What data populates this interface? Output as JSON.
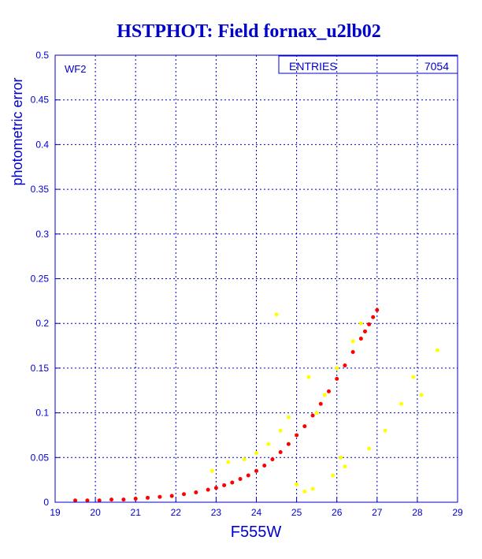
{
  "chart_data": {
    "type": "scatter",
    "title": "HSTPHOT: Field fornax_u2lb02",
    "xlabel": "F555W",
    "ylabel": "photometric error",
    "xlim": [
      19,
      29
    ],
    "ylim": [
      0,
      0.5
    ],
    "x_ticks": [
      "19",
      "20",
      "21",
      "22",
      "23",
      "24",
      "25",
      "26",
      "27",
      "28",
      "29"
    ],
    "y_ticks": [
      "0",
      "0.05",
      "0.1",
      "0.15",
      "0.2",
      "0.25",
      "0.3",
      "0.35",
      "0.4",
      "0.45",
      "0.5"
    ],
    "grid": true,
    "panel_label": "WF2",
    "stats": {
      "label": "ENTRIES",
      "value": "7054"
    },
    "series": [
      {
        "color": "#ff0000",
        "x": [
          19.5,
          19.8,
          20.1,
          20.4,
          20.7,
          21.0,
          21.3,
          21.6,
          21.9,
          22.2,
          22.5,
          22.8,
          23.0,
          23.2,
          23.4,
          23.6,
          23.8,
          24.0,
          24.2,
          24.4,
          24.6,
          24.8,
          25.0,
          25.2,
          25.4,
          25.6,
          25.8,
          26.0,
          26.2,
          26.4,
          26.6,
          26.7,
          26.8,
          26.9,
          27.0
        ],
        "y": [
          0.002,
          0.002,
          0.002,
          0.003,
          0.003,
          0.004,
          0.005,
          0.006,
          0.007,
          0.009,
          0.011,
          0.014,
          0.016,
          0.019,
          0.022,
          0.026,
          0.03,
          0.035,
          0.041,
          0.048,
          0.056,
          0.065,
          0.075,
          0.085,
          0.097,
          0.11,
          0.124,
          0.138,
          0.153,
          0.168,
          0.183,
          0.191,
          0.199,
          0.207,
          0.215
        ]
      },
      {
        "color": "#ffff00",
        "x": [
          22.9,
          23.3,
          23.7,
          24.0,
          24.3,
          24.6,
          24.8,
          25.0,
          25.2,
          25.4,
          25.5,
          25.7,
          25.9,
          26.0,
          26.2,
          26.4,
          26.6,
          26.8,
          27.2,
          27.6,
          27.9,
          28.1,
          28.5,
          24.5,
          25.3,
          26.1
        ],
        "y": [
          0.035,
          0.045,
          0.048,
          0.055,
          0.065,
          0.08,
          0.095,
          0.02,
          0.012,
          0.015,
          0.1,
          0.12,
          0.03,
          0.15,
          0.04,
          0.18,
          0.2,
          0.06,
          0.08,
          0.11,
          0.14,
          0.12,
          0.17,
          0.21,
          0.14,
          0.05
        ]
      }
    ]
  }
}
